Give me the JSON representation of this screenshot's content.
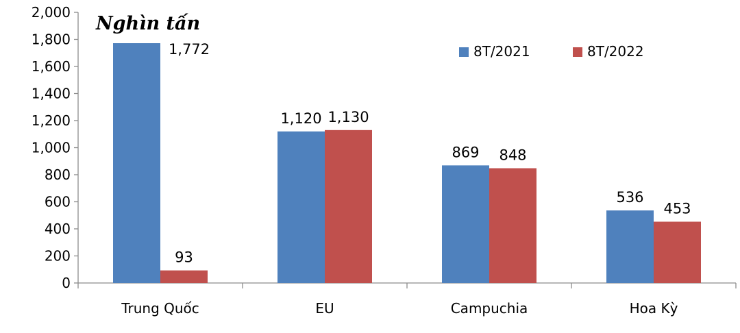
{
  "chart_data": {
    "type": "bar",
    "title": "",
    "unit_label": "Nghìn tấn",
    "xlabel": "",
    "ylabel": "",
    "ylim": [
      0,
      2000
    ],
    "ytick_step": 200,
    "yticks": [
      "0",
      "200",
      "400",
      "600",
      "800",
      "1,000",
      "1,200",
      "1,400",
      "1,600",
      "1,800",
      "2,000"
    ],
    "categories": [
      "Trung Quốc",
      "EU",
      "Campuchia",
      "Hoa Kỳ"
    ],
    "series": [
      {
        "name": "8T/2021",
        "color": "#4f81bd",
        "values": [
          1772,
          1120,
          869,
          536
        ],
        "labels": [
          "1,772",
          "1,120",
          "869",
          "536"
        ]
      },
      {
        "name": "8T/2022",
        "color": "#c0504d",
        "values": [
          93,
          1130,
          848,
          453
        ],
        "labels": [
          "93",
          "1,130",
          "848",
          "453"
        ]
      }
    ],
    "grid": false,
    "legend_position": "top-right"
  }
}
